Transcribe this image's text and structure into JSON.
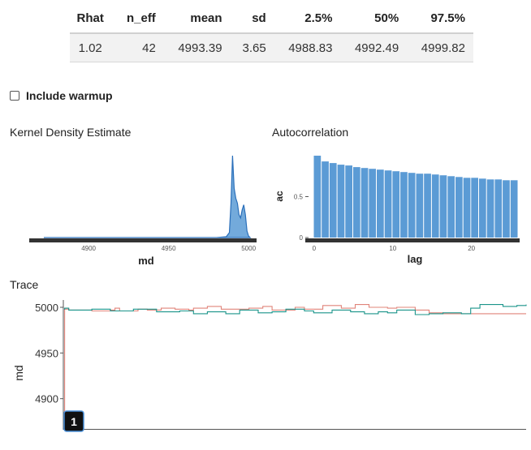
{
  "stats_table": {
    "headers": [
      "Rhat",
      "n_eff",
      "mean",
      "sd",
      "2.5%",
      "50%",
      "97.5%"
    ],
    "row": [
      "1.02",
      "42",
      "4993.39",
      "3.65",
      "4988.83",
      "4992.49",
      "4999.82"
    ]
  },
  "controls": {
    "include_warmup_label": "Include warmup",
    "include_warmup_checked": false
  },
  "sections": {
    "kde_title": "Kernel Density Estimate",
    "autocorr_title": "Autocorrelation",
    "trace_title": "Trace"
  },
  "chart_data": [
    {
      "type": "area",
      "title": "Kernel Density Estimate",
      "xlabel": "md",
      "ylabel": "",
      "xlim": [
        4870,
        5005
      ],
      "xticks": [
        "4900",
        "4950",
        "5000"
      ],
      "x": [
        4872,
        4980,
        4986,
        4988,
        4989,
        4990,
        4991,
        4992,
        4993,
        4994,
        4995,
        4996,
        4997,
        4998,
        4999,
        5000,
        5001
      ],
      "density": [
        0.0,
        0.0,
        0.01,
        0.06,
        0.42,
        1.0,
        0.6,
        0.48,
        0.42,
        0.28,
        0.24,
        0.34,
        0.4,
        0.28,
        0.08,
        0.02,
        0.0
      ],
      "color": "#5b9bd5"
    },
    {
      "type": "bar",
      "title": "Autocorrelation",
      "xlabel": "lag",
      "ylabel": "ac",
      "ylim": [
        0,
        1
      ],
      "yticks": [
        "0",
        "0.5"
      ],
      "xticks": [
        "0",
        "10",
        "20"
      ],
      "lags": [
        0,
        1,
        2,
        3,
        4,
        5,
        6,
        7,
        8,
        9,
        10,
        11,
        12,
        13,
        14,
        15,
        16,
        17,
        18,
        19,
        20,
        21,
        22,
        23,
        24,
        25
      ],
      "values": [
        1.0,
        0.93,
        0.91,
        0.89,
        0.88,
        0.86,
        0.85,
        0.84,
        0.83,
        0.82,
        0.81,
        0.8,
        0.79,
        0.78,
        0.78,
        0.77,
        0.76,
        0.75,
        0.74,
        0.73,
        0.73,
        0.72,
        0.71,
        0.71,
        0.7,
        0.7
      ],
      "color": "#5b9bd5"
    },
    {
      "type": "line",
      "title": "Trace",
      "xlabel": "",
      "ylabel": "md",
      "ylim": [
        4866,
        5008
      ],
      "yticks": [
        "4900",
        "4950",
        "5000"
      ],
      "iterations": 1000,
      "series": [
        {
          "color": "#e0847a",
          "x": [
            0,
            1,
            10,
            60,
            100,
            110,
            120,
            160,
            180,
            210,
            240,
            270,
            280,
            310,
            340,
            400,
            430,
            450,
            500,
            520,
            560,
            600,
            630,
            660,
            700,
            720,
            760,
            790,
            820,
            1000
          ],
          "values": [
            4866,
            4998,
            4997,
            4996,
            4997,
            4999,
            4996,
            4998,
            4997,
            4999,
            4998,
            4997,
            4999,
            5001,
            4998,
            4999,
            5001,
            4997,
            5000,
            4998,
            5002,
            4999,
            5003,
            5000,
            4999,
            5000,
            4997,
            4994,
            4993,
            4993
          ]
        },
        {
          "color": "#1a948a",
          "x": [
            0,
            1,
            10,
            60,
            100,
            150,
            200,
            250,
            280,
            310,
            350,
            380,
            420,
            450,
            480,
            520,
            540,
            580,
            620,
            650,
            680,
            700,
            720,
            760,
            790,
            820,
            860,
            880,
            900,
            950,
            980,
            1000
          ],
          "values": [
            4998,
            4999,
            4997,
            4998,
            4996,
            4998,
            4995,
            4996,
            4993,
            4995,
            4993,
            4997,
            4994,
            4995,
            4998,
            4996,
            4994,
            4997,
            4995,
            4993,
            4995,
            4994,
            4997,
            4992,
            4993,
            4994,
            4993,
            4999,
            5003,
            5001,
            5002,
            5003
          ]
        }
      ]
    }
  ],
  "badge": {
    "label": "1"
  }
}
